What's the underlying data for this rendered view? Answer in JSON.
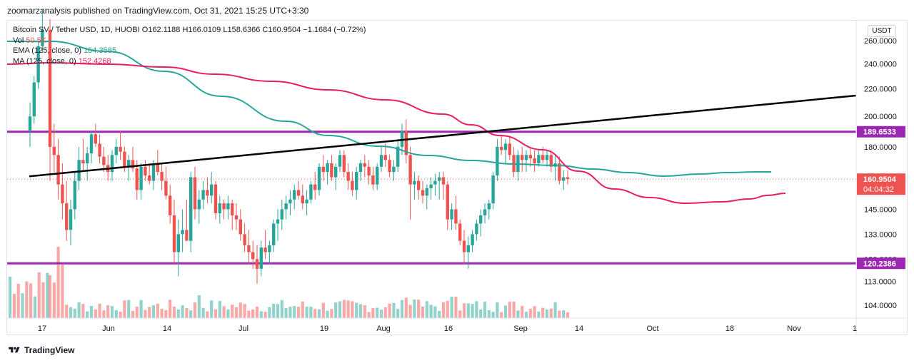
{
  "header": {
    "published": "zoomarzanalysis published on TradingView.com, Oct 31, 2021 15:25 UTC+3:30"
  },
  "legend": {
    "symbol": "Bitcoin SV / Tether USD, 1D, HUOBI",
    "open": "O162.1188",
    "high": "H166.0109",
    "low": "L158.6366",
    "close": "C160.9504",
    "change": "−1.1684 (−0.72%)",
    "vol_label": "Vol",
    "vol_value": "50.5K",
    "ema_label": "EMA (125, close, 0)",
    "ema_value": "164.3585",
    "ma_label": "MA (125, close, 0)",
    "ma_value": "152.4268"
  },
  "unit": "USDT",
  "footer": {
    "brand": "TradingView"
  },
  "colors": {
    "up": "#26a69a",
    "down": "#ef5350",
    "ema": "#26a69a",
    "ma": "#e91e63",
    "level": "#9c27b0",
    "trend": "#000000"
  },
  "chart_data": {
    "type": "candlestick",
    "price_axis": {
      "ticks": [
        "260.0000",
        "240.0000",
        "220.0000",
        "200.0000",
        "180.0000",
        "145.0000",
        "133.0000",
        "122.0000",
        "113.0000",
        "104.0000"
      ],
      "scale": "log"
    },
    "time_axis": {
      "ticks": [
        "17",
        "Jun",
        "14",
        "Jul",
        "19",
        "Aug",
        "16",
        "Sep",
        "14",
        "Oct",
        "18",
        "Nov",
        "1"
      ]
    },
    "horizontal_levels": [
      {
        "value": 189.6533,
        "label": "189.6533"
      },
      {
        "value": 120.2386,
        "label": "120.2386"
      }
    ],
    "last_price": {
      "value": 160.9504,
      "label": "160.9504",
      "countdown": "04:04:32"
    },
    "trendline": [
      {
        "day": -5,
        "price": 162.5
      },
      {
        "day": 175,
        "price": 215
      }
    ],
    "start_date": "2021-05-14",
    "candles": [
      [
        270,
        280,
        160,
        180
      ],
      [
        180,
        195,
        165,
        175
      ],
      [
        175,
        185,
        150,
        158
      ],
      [
        158,
        170,
        140,
        148
      ],
      [
        148,
        160,
        130,
        135
      ],
      [
        135,
        150,
        128,
        145
      ],
      [
        145,
        165,
        140,
        160
      ],
      [
        160,
        180,
        155,
        172
      ],
      [
        172,
        185,
        165,
        170
      ],
      [
        170,
        180,
        160,
        176
      ],
      [
        176,
        190,
        170,
        188
      ],
      [
        188,
        195,
        180,
        182
      ],
      [
        182,
        188,
        170,
        174
      ],
      [
        174,
        180,
        165,
        169
      ],
      [
        169,
        175,
        160,
        165
      ],
      [
        165,
        178,
        160,
        175
      ],
      [
        175,
        185,
        170,
        180
      ],
      [
        180,
        190,
        172,
        177
      ],
      [
        177,
        180,
        165,
        168
      ],
      [
        168,
        175,
        160,
        172
      ],
      [
        172,
        180,
        165,
        167
      ],
      [
        167,
        172,
        150,
        155
      ],
      [
        155,
        170,
        150,
        168
      ],
      [
        168,
        172,
        160,
        163
      ],
      [
        163,
        170,
        158,
        160
      ],
      [
        160,
        172,
        155,
        170
      ],
      [
        170,
        178,
        163,
        165
      ],
      [
        165,
        170,
        155,
        160
      ],
      [
        160,
        168,
        150,
        152
      ],
      [
        152,
        158,
        138,
        142
      ],
      [
        142,
        150,
        120,
        125
      ],
      [
        125,
        140,
        115,
        133
      ],
      [
        133,
        145,
        125,
        135
      ],
      [
        135,
        150,
        130,
        130
      ],
      [
        130,
        165,
        125,
        162
      ],
      [
        162,
        168,
        140,
        145
      ],
      [
        145,
        155,
        138,
        150
      ],
      [
        150,
        160,
        145,
        155
      ],
      [
        155,
        162,
        148,
        152
      ],
      [
        152,
        165,
        148,
        158
      ],
      [
        158,
        160,
        140,
        143
      ],
      [
        143,
        152,
        138,
        148
      ],
      [
        148,
        150,
        140,
        145
      ],
      [
        145,
        152,
        140,
        148
      ],
      [
        148,
        150,
        135,
        142
      ],
      [
        142,
        148,
        135,
        140
      ],
      [
        140,
        145,
        130,
        133
      ],
      [
        133,
        138,
        125,
        128
      ],
      [
        128,
        135,
        120,
        125
      ],
      [
        125,
        130,
        118,
        122
      ],
      [
        122,
        128,
        112,
        118
      ],
      [
        118,
        130,
        115,
        127
      ],
      [
        127,
        135,
        122,
        125
      ],
      [
        125,
        130,
        120,
        128
      ],
      [
        128,
        140,
        125,
        138
      ],
      [
        138,
        145,
        130,
        140
      ],
      [
        140,
        150,
        135,
        145
      ],
      [
        145,
        152,
        140,
        148
      ],
      [
        148,
        155,
        142,
        150
      ],
      [
        150,
        158,
        145,
        155
      ],
      [
        155,
        160,
        150,
        152
      ],
      [
        152,
        158,
        145,
        148
      ],
      [
        148,
        155,
        142,
        150
      ],
      [
        150,
        160,
        148,
        158
      ],
      [
        158,
        165,
        150,
        155
      ],
      [
        155,
        170,
        152,
        168
      ],
      [
        168,
        175,
        160,
        165
      ],
      [
        165,
        172,
        158,
        170
      ],
      [
        170,
        175,
        160,
        162
      ],
      [
        162,
        170,
        155,
        168
      ],
      [
        168,
        178,
        165,
        175
      ],
      [
        175,
        178,
        162,
        165
      ],
      [
        165,
        170,
        155,
        160
      ],
      [
        160,
        165,
        152,
        155
      ],
      [
        155,
        168,
        150,
        165
      ],
      [
        165,
        172,
        160,
        170
      ],
      [
        170,
        175,
        162,
        168
      ],
      [
        168,
        172,
        158,
        163
      ],
      [
        163,
        168,
        155,
        158
      ],
      [
        158,
        170,
        155,
        168
      ],
      [
        168,
        180,
        165,
        175
      ],
      [
        175,
        182,
        168,
        172
      ],
      [
        172,
        175,
        162,
        165
      ],
      [
        165,
        172,
        160,
        168
      ],
      [
        168,
        185,
        165,
        180
      ],
      [
        180,
        195,
        175,
        190
      ],
      [
        190,
        198,
        170,
        175
      ],
      [
        175,
        180,
        140,
        158
      ],
      [
        158,
        165,
        150,
        160
      ],
      [
        160,
        163,
        150,
        155
      ],
      [
        155,
        160,
        148,
        152
      ],
      [
        152,
        158,
        145,
        156
      ],
      [
        156,
        162,
        150,
        158
      ],
      [
        158,
        164,
        152,
        160
      ],
      [
        160,
        165,
        150,
        162
      ],
      [
        162,
        165,
        150,
        158
      ],
      [
        158,
        160,
        135,
        140
      ],
      [
        140,
        148,
        135,
        145
      ],
      [
        145,
        152,
        135,
        138
      ],
      [
        138,
        140,
        128,
        130
      ],
      [
        130,
        135,
        120,
        125
      ],
      [
        125,
        132,
        118,
        128
      ],
      [
        128,
        135,
        125,
        133
      ],
      [
        133,
        140,
        130,
        138
      ],
      [
        138,
        145,
        132,
        142
      ],
      [
        142,
        148,
        138,
        145
      ],
      [
        145,
        150,
        140,
        148
      ],
      [
        148,
        165,
        145,
        163
      ],
      [
        163,
        185,
        160,
        180
      ],
      [
        180,
        187,
        175,
        178
      ],
      [
        178,
        185,
        170,
        182
      ],
      [
        182,
        187,
        172,
        175
      ],
      [
        175,
        180,
        162,
        165
      ],
      [
        165,
        178,
        160,
        175
      ],
      [
        175,
        180,
        165,
        172
      ],
      [
        172,
        178,
        165,
        175
      ],
      [
        175,
        180,
        168,
        173
      ],
      [
        173,
        178,
        165,
        170
      ],
      [
        170,
        178,
        168,
        175
      ],
      [
        175,
        180,
        170,
        172
      ],
      [
        172,
        178,
        168,
        175
      ],
      [
        175,
        178,
        165,
        168
      ],
      [
        168,
        175,
        160,
        170
      ],
      [
        170,
        174,
        158,
        160
      ],
      [
        160,
        166,
        155,
        162
      ],
      [
        162,
        166,
        158,
        161
      ]
    ],
    "volume_scale": 1
  }
}
